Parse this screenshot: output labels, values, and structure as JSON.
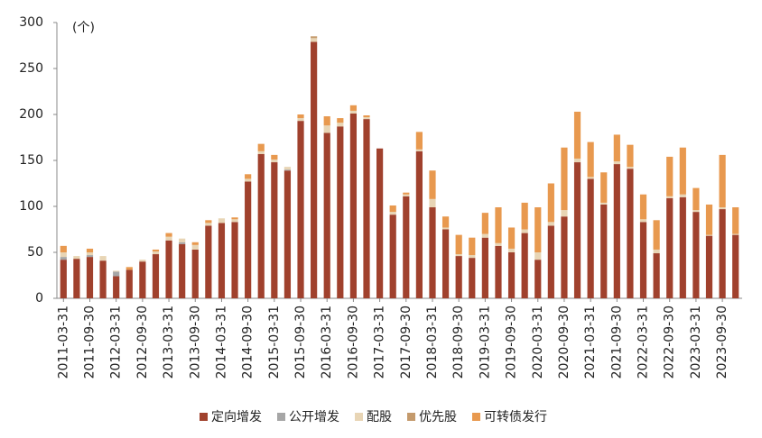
{
  "chart_data": {
    "type": "stacked-bar",
    "annotation": "(个)",
    "categories": [
      "2011-03-31",
      null,
      "2011-09-30",
      null,
      "2012-03-31",
      null,
      "2012-09-30",
      null,
      "2013-03-31",
      null,
      "2013-09-30",
      null,
      "2014-03-31",
      null,
      "2014-09-30",
      null,
      "2015-03-31",
      null,
      "2015-09-30",
      null,
      "2016-03-31",
      null,
      "2016-09-30",
      null,
      "2017-03-31",
      null,
      "2017-09-30",
      null,
      "2018-03-31",
      null,
      "2018-09-30",
      null,
      "2019-03-31",
      null,
      "2019-09-30",
      null,
      "2020-03-31",
      null,
      "2020-09-30",
      null,
      "2021-03-31",
      null,
      "2021-09-30",
      null,
      "2022-03-31",
      null,
      "2022-09-30",
      null,
      "2023-03-31",
      null,
      "2023-09-30",
      null
    ],
    "series": [
      {
        "name": "定向增发",
        "color": "#a0412d",
        "values": [
          42,
          43,
          45,
          41,
          24,
          31,
          40,
          48,
          63,
          59,
          53,
          79,
          82,
          83,
          127,
          157,
          148,
          139,
          193,
          279,
          180,
          187,
          201,
          195,
          163,
          91,
          111,
          160,
          99,
          75,
          46,
          44,
          66,
          57,
          50,
          71,
          42,
          79,
          89,
          148,
          130,
          102,
          146,
          141,
          83,
          49,
          109,
          110,
          94,
          68,
          97,
          69
        ]
      },
      {
        "name": "公开增发",
        "color": "#a6a6a6",
        "values": [
          3,
          0,
          2,
          0,
          5,
          0,
          0,
          0,
          0,
          2,
          0,
          0,
          0,
          0,
          0,
          0,
          0,
          1,
          0,
          0,
          0,
          0,
          0,
          0,
          0,
          0,
          0,
          0,
          0,
          0,
          0,
          0,
          0,
          0,
          0,
          0,
          0,
          0,
          0,
          0,
          0,
          0,
          0,
          0,
          0,
          0,
          0,
          0,
          0,
          0,
          0,
          0
        ]
      },
      {
        "name": "配股",
        "color": "#e8d5b5",
        "values": [
          5,
          3,
          3,
          5,
          1,
          0,
          2,
          3,
          4,
          4,
          5,
          3,
          5,
          3,
          3,
          3,
          3,
          3,
          3,
          4,
          8,
          4,
          3,
          2,
          0,
          3,
          2,
          2,
          9,
          2,
          2,
          3,
          4,
          3,
          4,
          4,
          8,
          4,
          7,
          4,
          2,
          2,
          3,
          2,
          3,
          4,
          2,
          3,
          2,
          1,
          2,
          1
        ]
      },
      {
        "name": "优先股",
        "color": "#c49a6c",
        "values": [
          0,
          0,
          0,
          0,
          0,
          0,
          0,
          0,
          0,
          0,
          0,
          0,
          0,
          0,
          0,
          0,
          0,
          0,
          0,
          2,
          0,
          0,
          0,
          0,
          0,
          0,
          0,
          0,
          0,
          0,
          0,
          0,
          0,
          0,
          0,
          0,
          0,
          0,
          0,
          0,
          0,
          0,
          0,
          0,
          0,
          0,
          0,
          0,
          0,
          0,
          0,
          0
        ]
      },
      {
        "name": "可转债发行",
        "color": "#e8994f",
        "values": [
          7,
          0,
          4,
          0,
          0,
          3,
          0,
          2,
          4,
          0,
          3,
          3,
          0,
          2,
          5,
          8,
          5,
          0,
          4,
          0,
          10,
          5,
          6,
          2,
          0,
          7,
          2,
          19,
          31,
          12,
          21,
          19,
          23,
          39,
          23,
          29,
          49,
          42,
          68,
          51,
          38,
          33,
          29,
          24,
          27,
          32,
          43,
          51,
          24,
          33,
          57,
          29
        ]
      }
    ],
    "ylim": [
      0,
      300
    ],
    "yticks": [
      0,
      50,
      100,
      150,
      200,
      250,
      300
    ],
    "legend": "bottom"
  }
}
